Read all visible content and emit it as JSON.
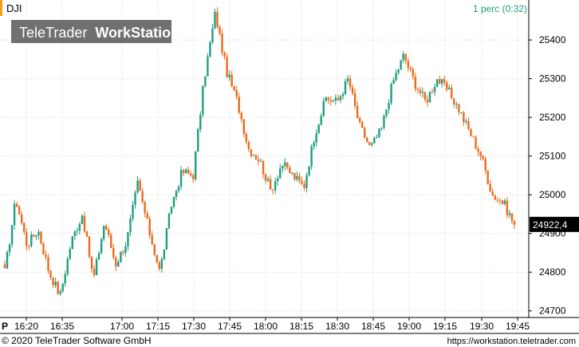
{
  "header": {
    "symbol": "DJI",
    "interval": "1 perc (0:32)",
    "watermark_light": "TeleTrader",
    "watermark_bold": "WorkStation"
  },
  "footer": {
    "copyright": "© 2020 TeleTrader Software GmbH",
    "url": "https://workstation.teletrader.com"
  },
  "colors": {
    "up": "#1e9e83",
    "down": "#ef6a1a",
    "grid": "#d8d8d8",
    "accent": "#f59c1a",
    "interval_text": "#1e9e83",
    "price_badge_bg": "#000000"
  },
  "chart_data": {
    "type": "candlestick",
    "last_price_label": "24922,4",
    "period_marker": "P",
    "x_ticks": [
      "16:20",
      "16:35",
      "17:00",
      "17:15",
      "17:30",
      "17:45",
      "18:00",
      "18:15",
      "18:30",
      "18:45",
      "19:00",
      "19:15",
      "19:30",
      "19:45"
    ],
    "y_ticks": [
      "24700",
      "24800",
      "24900",
      "25000",
      "25100",
      "25200",
      "25300",
      "25400"
    ],
    "y_tick_values": [
      24700,
      24800,
      24900,
      25000,
      25100,
      25200,
      25300,
      25400
    ],
    "ylim": [
      24685,
      25495
    ],
    "last_price": 24922.4,
    "key_closes": [
      24800,
      24990,
      24870,
      24910,
      24800,
      24740,
      24880,
      24950,
      24780,
      24930,
      24820,
      24880,
      25030,
      24910,
      24800,
      24970,
      25060,
      25050,
      25300,
      25470,
      25320,
      25240,
      25120,
      25090,
      25010,
      25080,
      25050,
      25020,
      25160,
      25250,
      25240,
      25300,
      25180,
      25120,
      25170,
      25290,
      25360,
      25290,
      25240,
      25300,
      25270,
      25220,
      25160,
      25100,
      25000,
      24980,
      24922
    ]
  }
}
